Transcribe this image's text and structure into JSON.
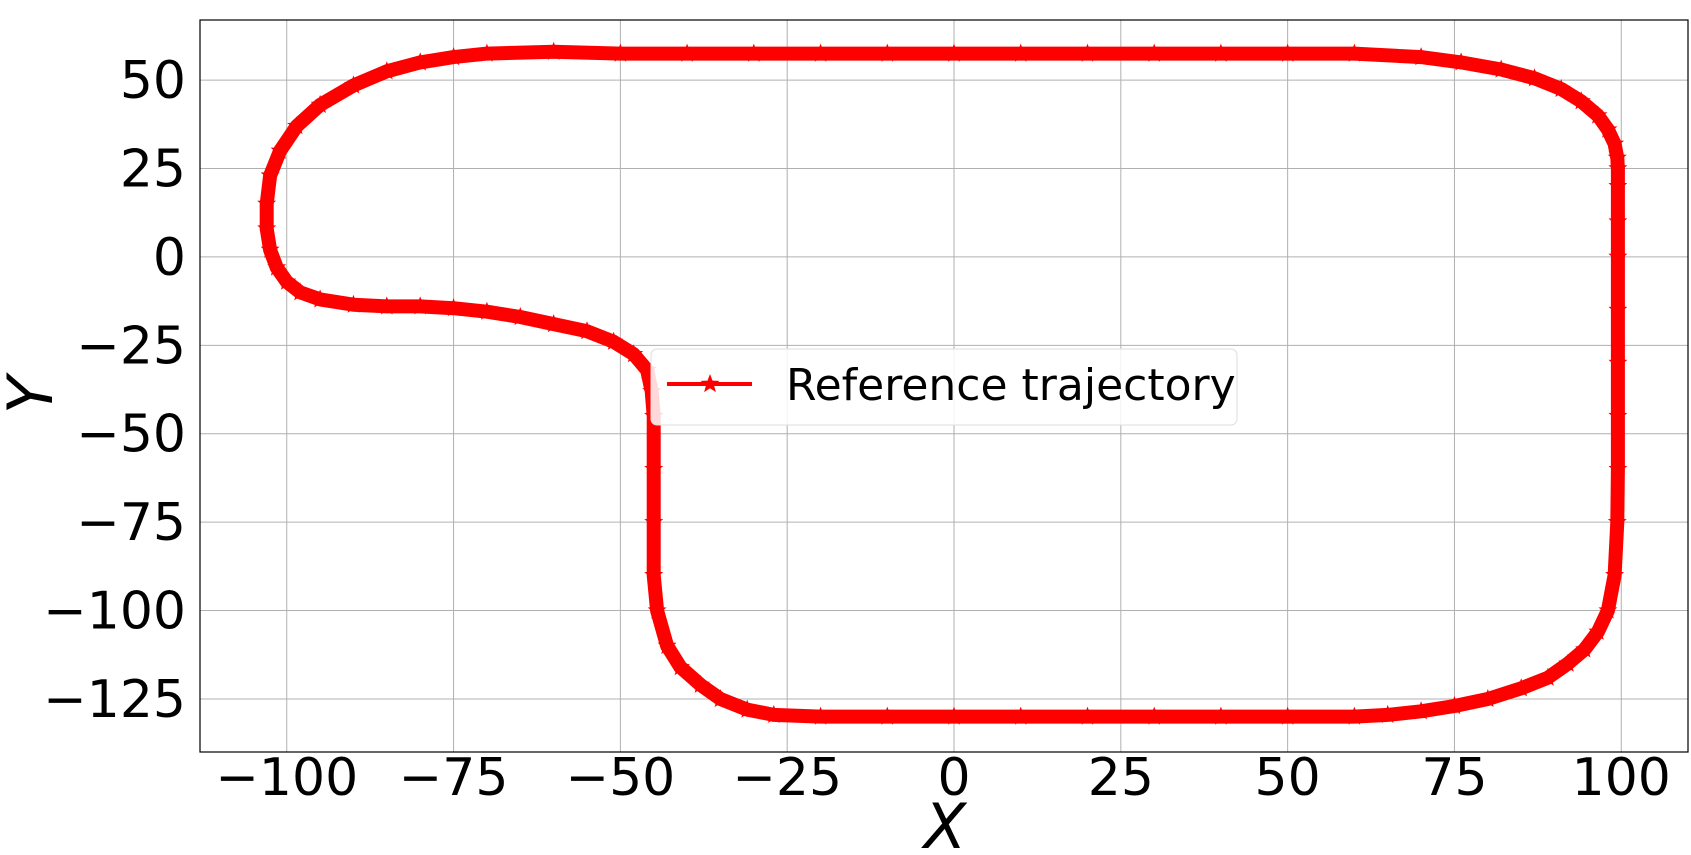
{
  "chart_data": {
    "type": "line",
    "title": "",
    "xlabel": "X",
    "ylabel": "Y",
    "xlim": [
      -113,
      110
    ],
    "ylim": [
      -140,
      67
    ],
    "xticks": [
      -100,
      -75,
      -50,
      -25,
      0,
      25,
      50,
      75,
      100
    ],
    "yticks": [
      50,
      25,
      0,
      -25,
      -50,
      -75,
      -100,
      -125
    ],
    "xtick_labels": [
      "−100",
      "−75",
      "−50",
      "−25",
      "0",
      "25",
      "50",
      "75",
      "100"
    ],
    "ytick_labels": [
      "50",
      "25",
      "0",
      "−25",
      "−50",
      "−75",
      "−100",
      "−125"
    ],
    "grid": true,
    "legend": {
      "placement": "center",
      "entries": [
        "Reference trajectory"
      ]
    },
    "series": [
      {
        "name": "Reference trajectory",
        "color": "#ff0000",
        "marker": "star",
        "x": [
          -45,
          -45,
          -45,
          -45,
          -44.5,
          -43,
          -41,
          -38,
          -35,
          -31,
          -27,
          -20,
          -10,
          0,
          10,
          20,
          30,
          40,
          50,
          60,
          65,
          70,
          75,
          80,
          85,
          89,
          92,
          94.5,
          96.5,
          98,
          99,
          99.4,
          99.5,
          99.5,
          99.5,
          99.5,
          99.5,
          99.5,
          99.5,
          99.5,
          99.4,
          99,
          98,
          96.5,
          94,
          91,
          87,
          82,
          76,
          70,
          60,
          50,
          40,
          30,
          20,
          10,
          0,
          -10,
          -20,
          -30,
          -40,
          -50,
          -60,
          -70,
          -75,
          -80,
          -85,
          -90,
          -95,
          -98.5,
          -101,
          -102.5,
          -103,
          -103,
          -102.5,
          -101.5,
          -100,
          -98,
          -95,
          -90,
          -85,
          -80,
          -75,
          -70,
          -65,
          -60,
          -55,
          -51,
          -48,
          -46,
          -45.3,
          -45
        ],
        "y": [
          -45,
          -60,
          -75,
          -90,
          -100,
          -110,
          -116,
          -121,
          -125,
          -128,
          -129.5,
          -130,
          -130,
          -130,
          -130,
          -130,
          -130,
          -130,
          -130,
          -130,
          -129.5,
          -128.5,
          -127,
          -125,
          -122,
          -119,
          -115,
          -111,
          -106,
          -100,
          -90,
          -75,
          -60,
          -45,
          -30,
          -15,
          0,
          10,
          20,
          25,
          28,
          32,
          36,
          40,
          44,
          47.5,
          50.5,
          53,
          55,
          56.5,
          57.5,
          57.5,
          57.5,
          57.5,
          57.5,
          57.5,
          57.5,
          57.5,
          57.5,
          57.5,
          57.5,
          57.5,
          58,
          57.5,
          56.5,
          55,
          52.5,
          48.5,
          43,
          37,
          30,
          23,
          15,
          8,
          2,
          -3,
          -7,
          -10,
          -12,
          -13.5,
          -14,
          -14,
          -14.5,
          -15.5,
          -17,
          -19,
          -21,
          -24,
          -27.5,
          -32,
          -38,
          -45
        ]
      }
    ]
  }
}
